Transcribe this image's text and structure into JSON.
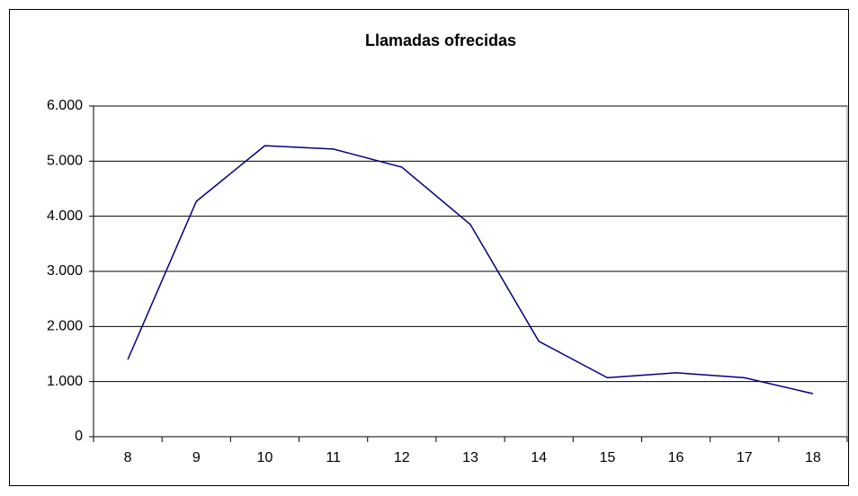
{
  "chart_data": {
    "type": "line",
    "title": "Llamadas ofrecidas",
    "categories": [
      "8",
      "9",
      "10",
      "11",
      "12",
      "13",
      "14",
      "15",
      "16",
      "17",
      "18"
    ],
    "series": [
      {
        "name": "Llamadas ofrecidas",
        "color": "#000080",
        "values": [
          1400,
          4270,
          5280,
          5220,
          4890,
          3850,
          1730,
          1070,
          1160,
          1070,
          780
        ]
      }
    ],
    "ylim": [
      0,
      6000
    ],
    "yticks": [
      0,
      {
        "value": 1000,
        "label": "1.000"
      },
      {
        "value": 2000,
        "label": "2.000"
      },
      {
        "value": 3000,
        "label": "3.000"
      },
      {
        "value": 4000,
        "label": "4.000"
      },
      {
        "value": 5000,
        "label": "5.000"
      },
      {
        "value": 6000,
        "label": "6.000"
      }
    ],
    "grid": true
  }
}
